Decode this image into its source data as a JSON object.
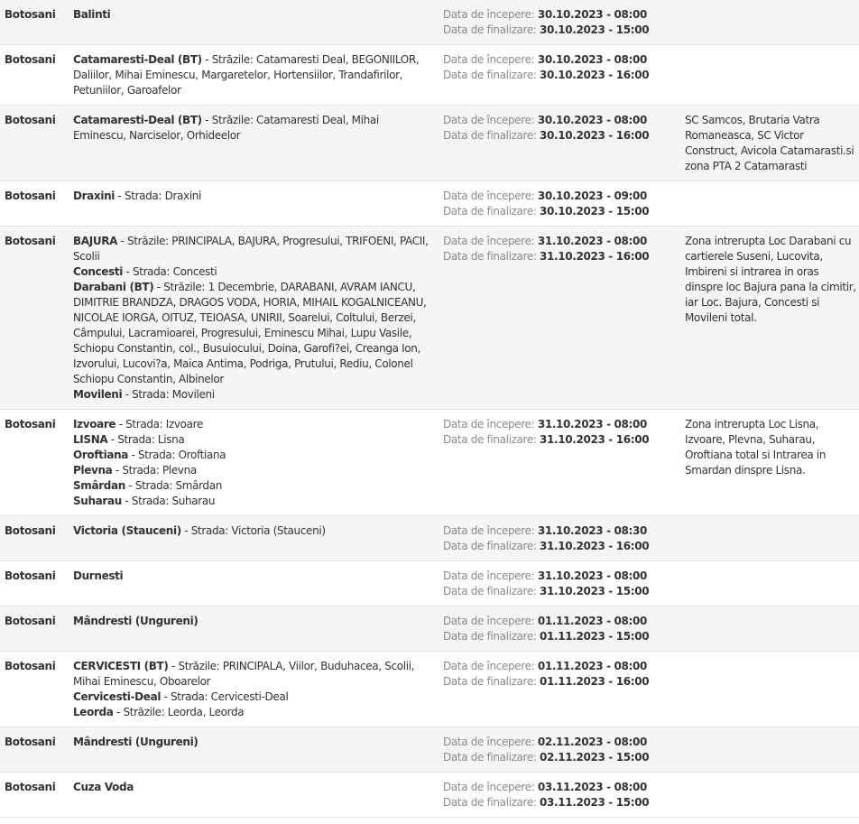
{
  "labels": {
    "start": "Data de începere:",
    "end": "Data de finalizare:"
  },
  "rows": [
    {
      "county": "Botosani",
      "localities": [
        {
          "name": "Balinti",
          "detail": ""
        }
      ],
      "start": "30.10.2023 - 08:00",
      "end": "30.10.2023 - 15:00",
      "notes": ""
    },
    {
      "county": "Botosani",
      "localities": [
        {
          "name": "Catamaresti-Deal (BT)",
          "detail": " - Străzile: Catamaresti Deal, BEGONIILOR, Daliilor, Mihai Eminescu, Margaretelor, Hortensiilor, Trandafirilor, Petuniilor, Garoafelor"
        }
      ],
      "start": "30.10.2023 - 08:00",
      "end": "30.10.2023 - 16:00",
      "notes": ""
    },
    {
      "county": "Botosani",
      "localities": [
        {
          "name": "Catamaresti-Deal (BT)",
          "detail": " - Străzile: Catamaresti Deal, Mihai Eminescu, Narciselor, Orhideelor"
        }
      ],
      "start": "30.10.2023 - 08:00",
      "end": "30.10.2023 - 16:00",
      "notes": "SC Samcos, Brutaria Vatra Romaneasca, SC Victor Construct, Avicola Catamarasti.si zona PTA 2 Catamarasti"
    },
    {
      "county": "Botosani",
      "localities": [
        {
          "name": "Draxini",
          "detail": " - Strada: Draxini"
        }
      ],
      "start": "30.10.2023 - 09:00",
      "end": "30.10.2023 - 15:00",
      "notes": ""
    },
    {
      "county": "Botosani",
      "localities": [
        {
          "name": "BAJURA",
          "detail": " - Străzile: PRINCIPALA, BAJURA, Progresului, TRIFOENI, PACII, Scolii"
        },
        {
          "name": "Concesti",
          "detail": " - Strada: Concesti"
        },
        {
          "name": "Darabani (BT)",
          "detail": " - Străzile: 1 Decembrie, DARABANI, AVRAM IANCU, DIMITRIE BRANDZA, DRAGOS VODA, HORIA, MIHAIL KOGALNICEANU, NICOLAE IORGA, OITUZ, TEIOASA, UNIRII, Soarelui, Coltului, Berzei, Câmpului, Lacramioarei, Progresului, Eminescu Mihai, Lupu Vasile, Schiopu Constantin, col., Busuiocului, Doina, Garofi?ei, Creanga Ion, Izvorului, Lucovi?a, Maica Antima, Podriga, Prutului, Rediu, Colonel Schiopu Constantin, Albinelor"
        },
        {
          "name": "Movileni",
          "detail": " - Strada: Movileni"
        }
      ],
      "start": "31.10.2023 - 08:00",
      "end": "31.10.2023 - 16:00",
      "notes": "Zona intrerupta Loc Darabani cu cartierele Suseni, Lucovita, Imbireni si intrarea in oras dinspre loc Bajura pana la cimitir, iar Loc. Bajura, Concesti si Movileni total."
    },
    {
      "county": "Botosani",
      "localities": [
        {
          "name": "Izvoare",
          "detail": " - Strada: Izvoare"
        },
        {
          "name": "LISNA",
          "detail": " - Strada: Lisna"
        },
        {
          "name": "Oroftiana",
          "detail": " - Strada: Oroftiana"
        },
        {
          "name": "Plevna",
          "detail": " - Strada: Plevna"
        },
        {
          "name": "Smârdan",
          "detail": " - Strada: Smârdan"
        },
        {
          "name": "Suharau",
          "detail": " - Strada: Suharau"
        }
      ],
      "start": "31.10.2023 - 08:00",
      "end": "31.10.2023 - 16:00",
      "notes": "Zona intrerupta Loc Lisna, Izvoare, Plevna, Suharau, Oroftiana total si Intrarea in Smardan dinspre Lisna."
    },
    {
      "county": "Botosani",
      "localities": [
        {
          "name": "Victoria (Stauceni)",
          "detail": " - Strada: Victoria (Stauceni)"
        }
      ],
      "start": "31.10.2023 - 08:30",
      "end": "31.10.2023 - 16:00",
      "notes": ""
    },
    {
      "county": "Botosani",
      "localities": [
        {
          "name": "Durnesti",
          "detail": ""
        }
      ],
      "start": "31.10.2023 - 08:00",
      "end": "31.10.2023 - 15:00",
      "notes": ""
    },
    {
      "county": "Botosani",
      "localities": [
        {
          "name": "Mândresti (Ungureni)",
          "detail": ""
        }
      ],
      "start": "01.11.2023 - 08:00",
      "end": "01.11.2023 - 15:00",
      "notes": ""
    },
    {
      "county": "Botosani",
      "localities": [
        {
          "name": "CERVICESTI (BT)",
          "detail": " - Străzile: PRINCIPALA, Viilor, Buduhacea, Scolii, Mihai Eminescu, Oboarelor"
        },
        {
          "name": "Cervicesti-Deal",
          "detail": " - Strada: Cervicesti-Deal"
        },
        {
          "name": "Leorda",
          "detail": " - Străzile: Leorda, Leorda"
        }
      ],
      "start": "01.11.2023 - 08:00",
      "end": "01.11.2023 - 16:00",
      "notes": ""
    },
    {
      "county": "Botosani",
      "localities": [
        {
          "name": "Mândresti (Ungureni)",
          "detail": ""
        }
      ],
      "start": "02.11.2023 - 08:00",
      "end": "02.11.2023 - 15:00",
      "notes": ""
    },
    {
      "county": "Botosani",
      "localities": [
        {
          "name": "Cuza Voda",
          "detail": ""
        }
      ],
      "start": "03.11.2023 - 08:00",
      "end": "03.11.2023 - 15:00",
      "notes": ""
    }
  ]
}
